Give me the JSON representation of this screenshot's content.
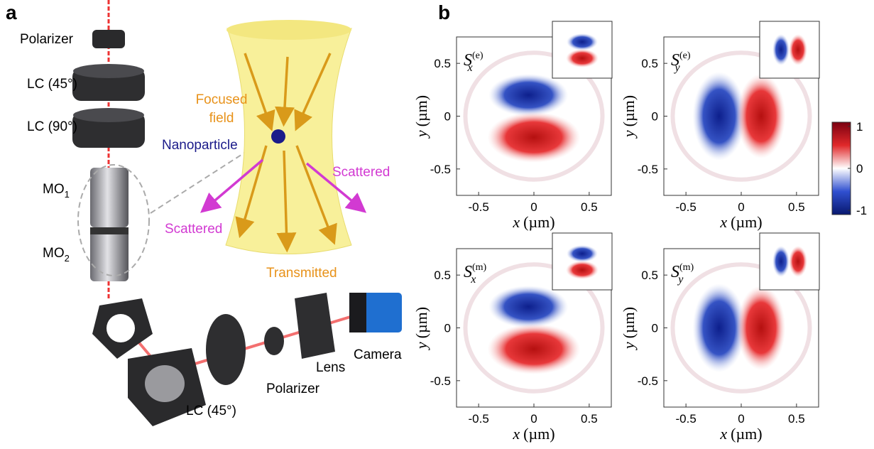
{
  "panel_a": {
    "label": "a",
    "top_polarizer": "Polarizer",
    "lc_45": "LC (45°)",
    "lc_90": "LC (90°)",
    "mo1": {
      "main": "MO",
      "sub": "1"
    },
    "mo2": {
      "main": "MO",
      "sub": "2"
    },
    "focused_field": [
      "Focused",
      "field"
    ],
    "nanoparticle": "Nanoparticle",
    "scattered_right": "Scattered",
    "scattered_left": "Scattered",
    "transmitted": "Transmitted",
    "camera": "Camera",
    "lens": "Lens",
    "bottom_polarizer": "Polarizer",
    "bottom_lc": "LC (45°)"
  },
  "panel_b": {
    "label": "b",
    "plots": [
      {
        "symbol": "S",
        "sub": "x",
        "sup": "(e)"
      },
      {
        "symbol": "S",
        "sub": "y",
        "sup": "(e)"
      },
      {
        "symbol": "S",
        "sub": "x",
        "sup": "(m)"
      },
      {
        "symbol": "S",
        "sub": "y",
        "sup": "(m)"
      }
    ],
    "xlim": [
      -0.7,
      0.7
    ],
    "ylim": [
      -0.75,
      0.75
    ],
    "xticks": [
      -0.5,
      0,
      0.5
    ],
    "yticks": [
      -0.5,
      0,
      0.5
    ],
    "xlabel": {
      "var": "x",
      "unit": "(µm)"
    },
    "ylabel": {
      "var": "y",
      "unit": "(µm)"
    },
    "colorbar": {
      "lim": [
        -1.1,
        1.1
      ],
      "ticks": [
        1,
        0,
        -1
      ]
    }
  }
}
